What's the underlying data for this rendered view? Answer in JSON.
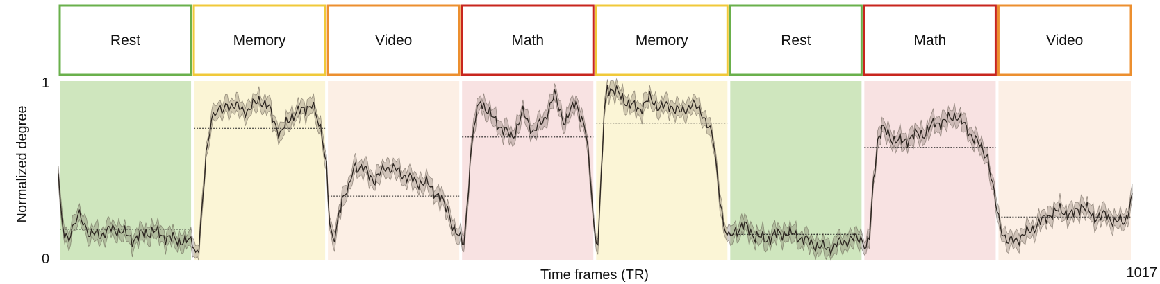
{
  "chart_data": {
    "type": "line",
    "xlabel": "Time frames (TR)",
    "ylabel": "Normalized degree",
    "xlim": [
      0,
      1017
    ],
    "ylim": [
      0,
      1
    ],
    "x_end_label": "1017",
    "yticks": [
      {
        "value": 0,
        "label": "0"
      },
      {
        "value": 1,
        "label": "1"
      }
    ],
    "blocks": [
      {
        "label": "Rest",
        "start": 0,
        "end": 127,
        "mean": 0.18,
        "color": "#6ab04c",
        "fill": "#cfe6be"
      },
      {
        "label": "Memory",
        "start": 127,
        "end": 254,
        "mean": 0.76,
        "color": "#f0c93a",
        "fill": "#fbf5d6"
      },
      {
        "label": "Video",
        "start": 254,
        "end": 381,
        "mean": 0.37,
        "color": "#ec8f2f",
        "fill": "#fcefe5"
      },
      {
        "label": "Math",
        "start": 381,
        "end": 508,
        "mean": 0.71,
        "color": "#c8261e",
        "fill": "#f8e2e2"
      },
      {
        "label": "Memory",
        "start": 508,
        "end": 635,
        "mean": 0.79,
        "color": "#f0c93a",
        "fill": "#fbf5d6"
      },
      {
        "label": "Rest",
        "start": 635,
        "end": 762,
        "mean": 0.15,
        "color": "#6ab04c",
        "fill": "#cfe6be"
      },
      {
        "label": "Math",
        "start": 762,
        "end": 889,
        "mean": 0.65,
        "color": "#c8261e",
        "fill": "#f8e2e2"
      },
      {
        "label": "Video",
        "start": 889,
        "end": 1017,
        "mean": 0.25,
        "color": "#ec8f2f",
        "fill": "#fcefe5"
      }
    ],
    "series": [
      {
        "x": [
          0,
          2,
          4,
          6,
          10,
          15,
          20,
          25,
          30,
          40,
          50,
          60,
          70,
          80,
          90,
          100,
          110,
          120,
          127,
          130,
          133,
          136,
          140,
          145,
          150,
          155,
          160,
          170,
          180,
          190,
          200,
          210,
          220,
          230,
          240,
          245,
          250,
          254,
          257,
          260,
          263,
          266,
          270,
          275,
          280,
          290,
          300,
          310,
          320,
          330,
          340,
          350,
          360,
          370,
          375,
          381,
          384,
          387,
          390,
          395,
          400,
          410,
          420,
          430,
          440,
          450,
          460,
          470,
          480,
          490,
          500,
          505,
          508,
          511,
          514,
          517,
          520,
          530,
          540,
          550,
          560,
          570,
          580,
          590,
          600,
          610,
          620,
          625,
          630,
          635,
          640,
          650,
          660,
          670,
          680,
          690,
          700,
          710,
          720,
          730,
          740,
          750,
          760,
          762,
          765,
          768,
          772,
          776,
          780,
          790,
          800,
          810,
          820,
          830,
          840,
          850,
          860,
          870,
          880,
          885,
          889,
          895,
          900,
          910,
          920,
          930,
          940,
          950,
          960,
          970,
          980,
          990,
          1000,
          1010,
          1017
        ],
        "y": [
          0.48,
          0.3,
          0.2,
          0.15,
          0.14,
          0.2,
          0.26,
          0.21,
          0.15,
          0.15,
          0.18,
          0.17,
          0.12,
          0.15,
          0.17,
          0.14,
          0.12,
          0.11,
          0.11,
          0.05,
          0.08,
          0.28,
          0.6,
          0.83,
          0.86,
          0.85,
          0.9,
          0.88,
          0.86,
          0.93,
          0.87,
          0.72,
          0.83,
          0.86,
          0.9,
          0.81,
          0.72,
          0.55,
          0.2,
          0.1,
          0.16,
          0.3,
          0.37,
          0.4,
          0.55,
          0.52,
          0.46,
          0.54,
          0.52,
          0.48,
          0.45,
          0.44,
          0.37,
          0.28,
          0.17,
          0.12,
          0.1,
          0.3,
          0.58,
          0.82,
          0.92,
          0.83,
          0.76,
          0.71,
          0.85,
          0.74,
          0.81,
          0.95,
          0.79,
          0.92,
          0.72,
          0.4,
          0.15,
          0.1,
          0.45,
          0.85,
          1.0,
          0.96,
          0.9,
          0.87,
          0.93,
          0.88,
          0.89,
          0.85,
          0.9,
          0.85,
          0.7,
          0.45,
          0.2,
          0.12,
          0.17,
          0.2,
          0.14,
          0.12,
          0.15,
          0.16,
          0.14,
          0.11,
          0.08,
          0.07,
          0.1,
          0.12,
          0.13,
          0.11,
          0.08,
          0.12,
          0.45,
          0.7,
          0.76,
          0.7,
          0.68,
          0.72,
          0.73,
          0.79,
          0.8,
          0.84,
          0.76,
          0.68,
          0.6,
          0.42,
          0.28,
          0.15,
          0.1,
          0.13,
          0.17,
          0.22,
          0.27,
          0.29,
          0.26,
          0.32,
          0.25,
          0.26,
          0.23,
          0.22,
          0.37
        ]
      }
    ],
    "legend": "none",
    "grid": false
  }
}
